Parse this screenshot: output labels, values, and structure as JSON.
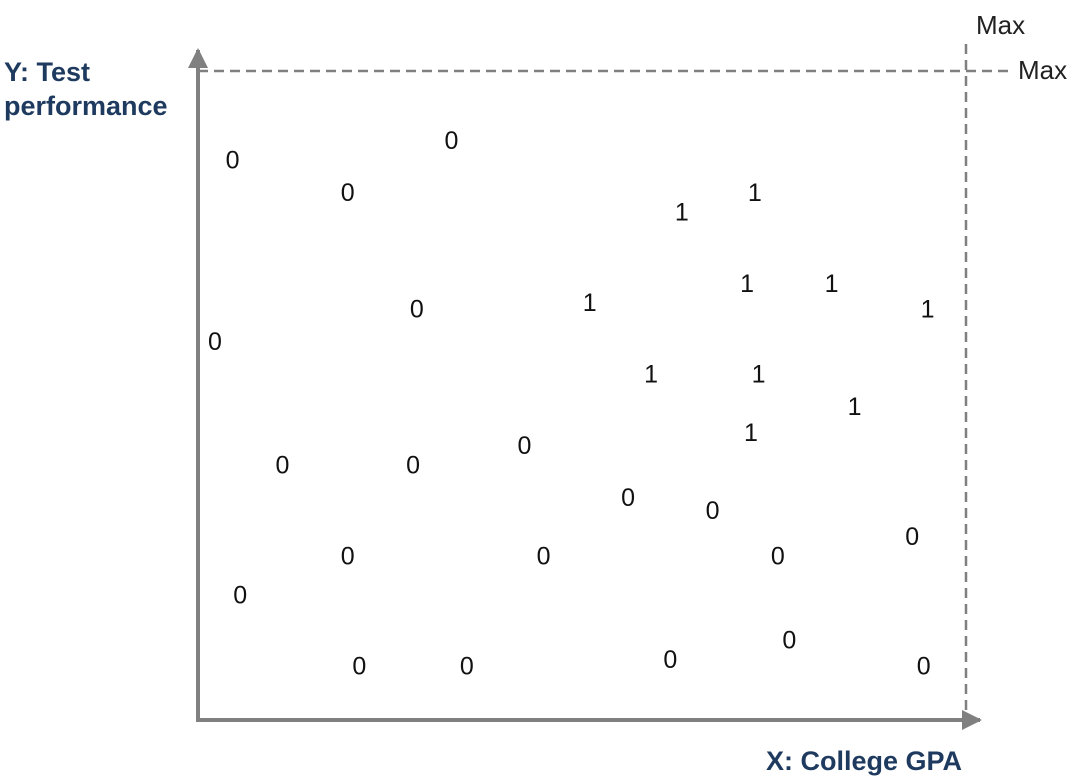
{
  "chart_data": {
    "type": "scatter",
    "title": "",
    "xlabel": "X: College GPA",
    "ylabel_lines": [
      "Y: Test",
      "performance"
    ],
    "x_max_label": "Max",
    "y_max_label": "Max",
    "xlim": [
      0,
      1
    ],
    "ylim": [
      0,
      1
    ],
    "grid": false,
    "legend": "none",
    "marker": "text-label",
    "colors": {
      "axis": "#808080",
      "axis_label": "#1f3a5f",
      "marker": "#111111"
    },
    "series": [
      {
        "label": "0",
        "points": [
          {
            "x": 0.045,
            "y": 0.86
          },
          {
            "x": 0.195,
            "y": 0.81
          },
          {
            "x": 0.33,
            "y": 0.89
          },
          {
            "x": 0.285,
            "y": 0.63
          },
          {
            "x": 0.022,
            "y": 0.58
          },
          {
            "x": 0.11,
            "y": 0.39
          },
          {
            "x": 0.28,
            "y": 0.39
          },
          {
            "x": 0.425,
            "y": 0.42
          },
          {
            "x": 0.56,
            "y": 0.34
          },
          {
            "x": 0.67,
            "y": 0.32
          },
          {
            "x": 0.93,
            "y": 0.28
          },
          {
            "x": 0.195,
            "y": 0.25
          },
          {
            "x": 0.45,
            "y": 0.25
          },
          {
            "x": 0.755,
            "y": 0.25
          },
          {
            "x": 0.055,
            "y": 0.19
          },
          {
            "x": 0.21,
            "y": 0.08
          },
          {
            "x": 0.35,
            "y": 0.08
          },
          {
            "x": 0.615,
            "y": 0.09
          },
          {
            "x": 0.77,
            "y": 0.12
          },
          {
            "x": 0.945,
            "y": 0.08
          }
        ]
      },
      {
        "label": "1",
        "points": [
          {
            "x": 0.63,
            "y": 0.78
          },
          {
            "x": 0.725,
            "y": 0.81
          },
          {
            "x": 0.715,
            "y": 0.67
          },
          {
            "x": 0.825,
            "y": 0.67
          },
          {
            "x": 0.95,
            "y": 0.63
          },
          {
            "x": 0.51,
            "y": 0.64
          },
          {
            "x": 0.59,
            "y": 0.53
          },
          {
            "x": 0.73,
            "y": 0.53
          },
          {
            "x": 0.855,
            "y": 0.48
          },
          {
            "x": 0.72,
            "y": 0.44
          }
        ]
      }
    ]
  }
}
